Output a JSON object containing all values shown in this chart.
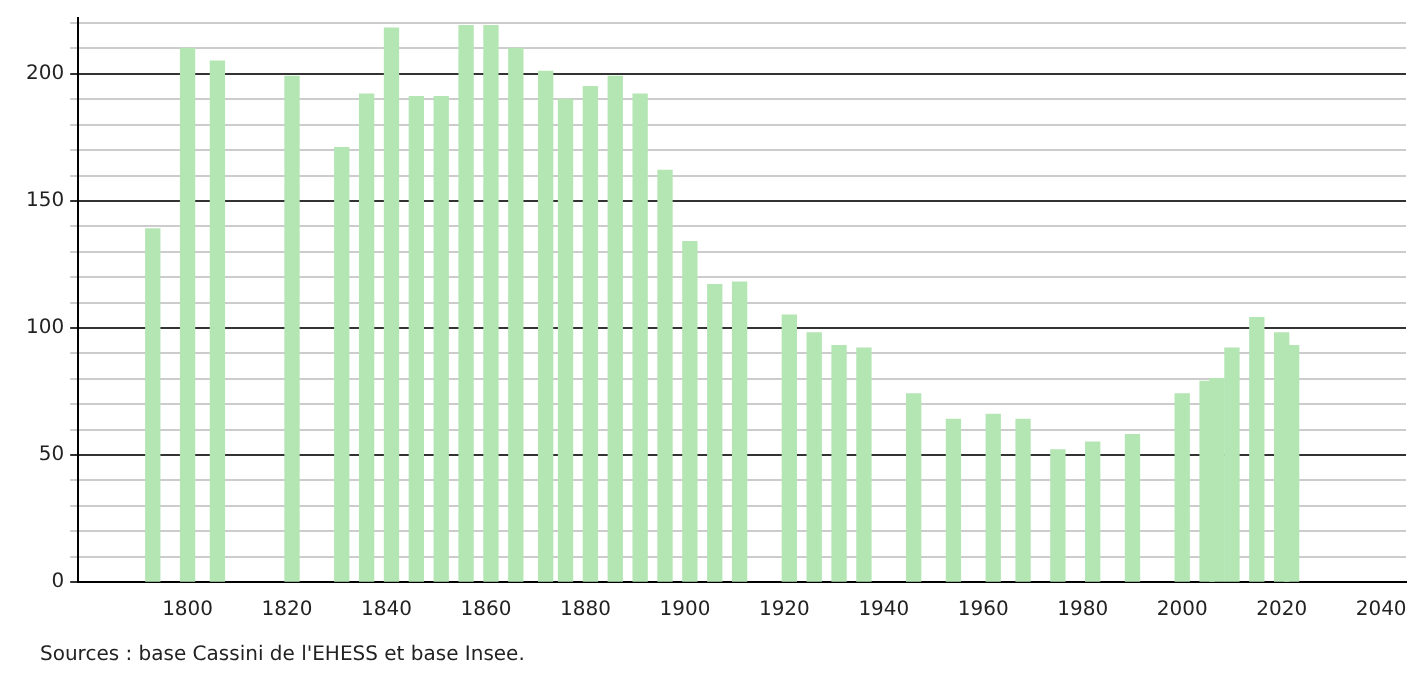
{
  "chart_data": {
    "type": "bar",
    "color": "#b3e6b3",
    "x": [
      1793,
      1800,
      1806,
      1821,
      1831,
      1836,
      1841,
      1846,
      1851,
      1856,
      1861,
      1866,
      1872,
      1876,
      1881,
      1886,
      1891,
      1896,
      1901,
      1906,
      1911,
      1921,
      1926,
      1931,
      1936,
      1946,
      1954,
      1962,
      1968,
      1975,
      1982,
      1990,
      2000,
      2005,
      2007,
      2010,
      2015,
      2020,
      2022
    ],
    "values": [
      139,
      210,
      205,
      199,
      171,
      192,
      218,
      191,
      191,
      219,
      219,
      210,
      201,
      190,
      195,
      199,
      192,
      162,
      134,
      117,
      118,
      105,
      98,
      93,
      92,
      74,
      64,
      66,
      64,
      52,
      55,
      58,
      74,
      79,
      80,
      92,
      104,
      98,
      93
    ],
    "xlim": [
      1778,
      2045
    ],
    "xticks": [
      1800,
      1820,
      1840,
      1860,
      1880,
      1900,
      1920,
      1940,
      1960,
      1980,
      2000,
      2020,
      2040
    ],
    "ylim": [
      0,
      222
    ],
    "yticks": [
      0,
      {
        "value": 10,
        "label": null
      },
      {
        "value": 20,
        "label": null
      },
      {
        "value": 30,
        "label": null
      },
      {
        "value": 40,
        "label": null
      },
      50,
      {
        "value": 60,
        "label": null
      },
      {
        "value": 70,
        "label": null
      },
      {
        "value": 80,
        "label": null
      },
      {
        "value": 90,
        "label": null
      },
      100,
      {
        "value": 110,
        "label": null
      },
      {
        "value": 120,
        "label": null
      },
      {
        "value": 130,
        "label": null
      },
      {
        "value": 140,
        "label": null
      },
      150,
      {
        "value": 160,
        "label": null
      },
      {
        "value": 170,
        "label": null
      },
      {
        "value": 180,
        "label": null
      },
      {
        "value": 190,
        "label": null
      },
      200,
      {
        "value": 210,
        "label": null
      },
      {
        "value": 220,
        "label": null
      }
    ],
    "grid": "y",
    "legend": false,
    "annotations": [
      "Sources : base Cassini de l'EHESS et base Insee."
    ]
  }
}
